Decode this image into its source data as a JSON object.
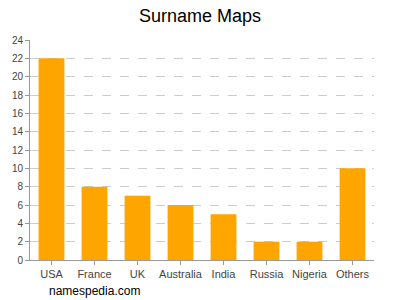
{
  "chart_data": {
    "type": "bar",
    "title": "Surname Maps",
    "categories": [
      "USA",
      "France",
      "UK",
      "Australia",
      "India",
      "Russia",
      "Nigeria",
      "Others"
    ],
    "values": [
      22,
      8,
      7,
      6,
      5,
      2,
      2,
      10
    ],
    "color": "#ffa500",
    "ylim": [
      0,
      24
    ],
    "yticks": [
      0,
      2,
      4,
      6,
      8,
      10,
      12,
      14,
      16,
      18,
      20,
      22,
      24
    ],
    "grid": true,
    "annotations": [
      "namespedia.com"
    ]
  }
}
